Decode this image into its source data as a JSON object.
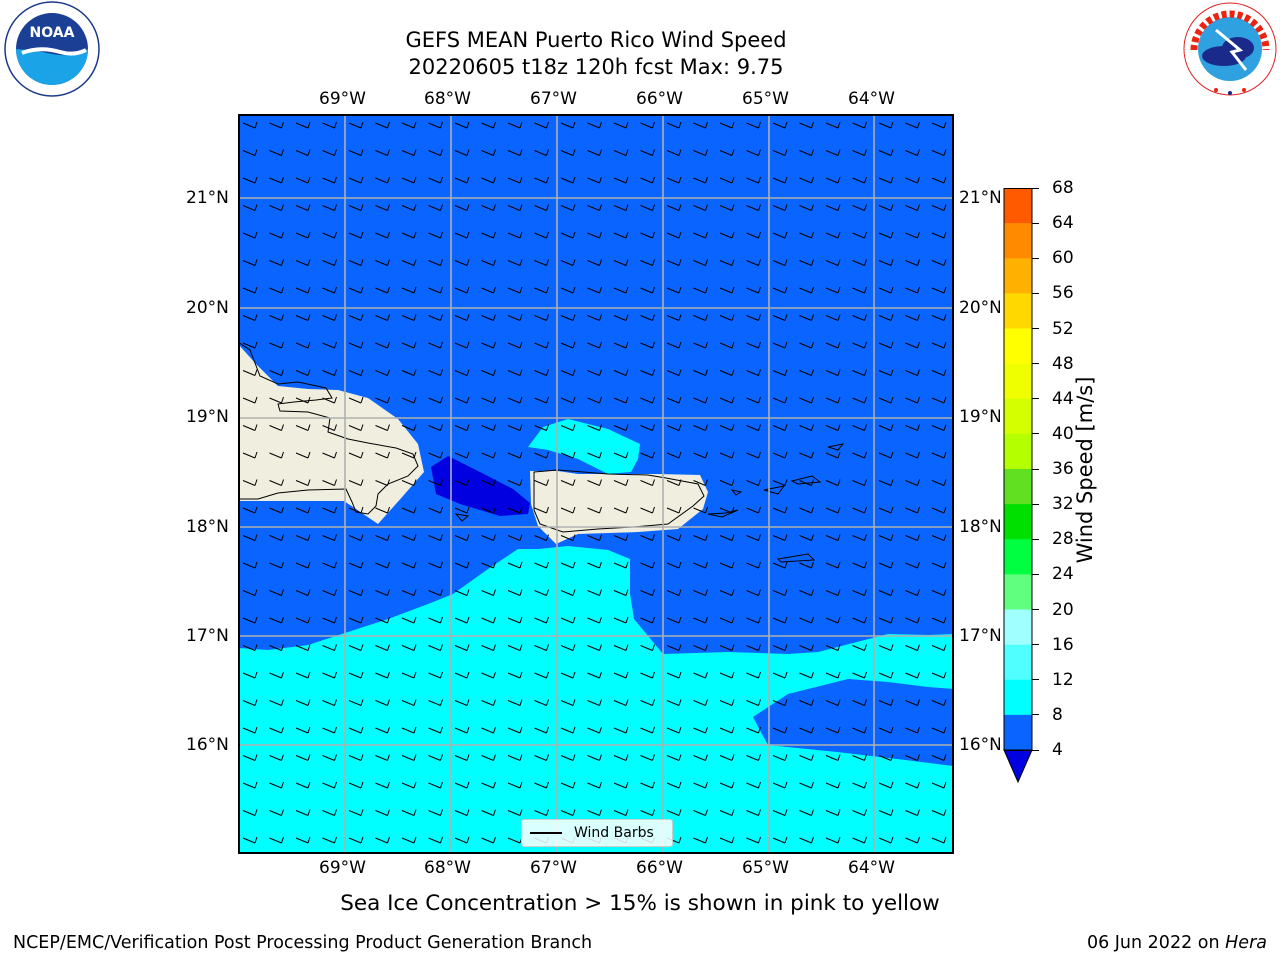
{
  "header": {
    "title_line1": "GEFS MEAN Puerto Rico Wind Speed",
    "title_line2": "20220605 t18z 120h fcst   Max: 9.75"
  },
  "logos": {
    "noaa_text": "NOAA",
    "noaa_ring": "NATIONAL OCEANIC AND ATMOSPHERIC ADMINISTRATION · U.S. DEPARTMENT OF COMMERCE",
    "nws_ring": "NATIONAL WEATHER SERVICE"
  },
  "map": {
    "lon_labels": [
      "69°W",
      "68°W",
      "67°W",
      "66°W",
      "65°W",
      "64°W"
    ],
    "lat_labels": [
      "21°N",
      "20°N",
      "19°N",
      "18°N",
      "17°N",
      "16°N"
    ],
    "legend_label": "Wind Barbs",
    "land_color": "#efeedf",
    "sea_color_4_8": "#0a64ff",
    "sea_color_8_12": "#00ffff",
    "low_color": "#0000e0"
  },
  "colorbar": {
    "label": "Wind Speed [m/s]",
    "ticks": [
      "68",
      "64",
      "60",
      "56",
      "52",
      "48",
      "44",
      "40",
      "36",
      "32",
      "28",
      "24",
      "20",
      "16",
      "12",
      "8",
      "4"
    ],
    "colors": [
      "#ff0000",
      "#ff2800",
      "#ff5a00",
      "#ff8a00",
      "#ffb000",
      "#ffd800",
      "#ffff00",
      "#f0ff00",
      "#d4ff00",
      "#b4ff00",
      "#60e020",
      "#00e000",
      "#00ff40",
      "#60ff80",
      "#a0ffff",
      "#50ffff",
      "#00ffff",
      "#0a64ff"
    ],
    "under_color": "#0000e0"
  },
  "footer": {
    "caption": "Sea Ice Concentration > 15% is shown in pink to yellow",
    "left": "NCEP/EMC/Verification Post Processing Product Generation Branch",
    "right_prefix": "06 Jun 2022 on ",
    "right_host": "Hera"
  }
}
